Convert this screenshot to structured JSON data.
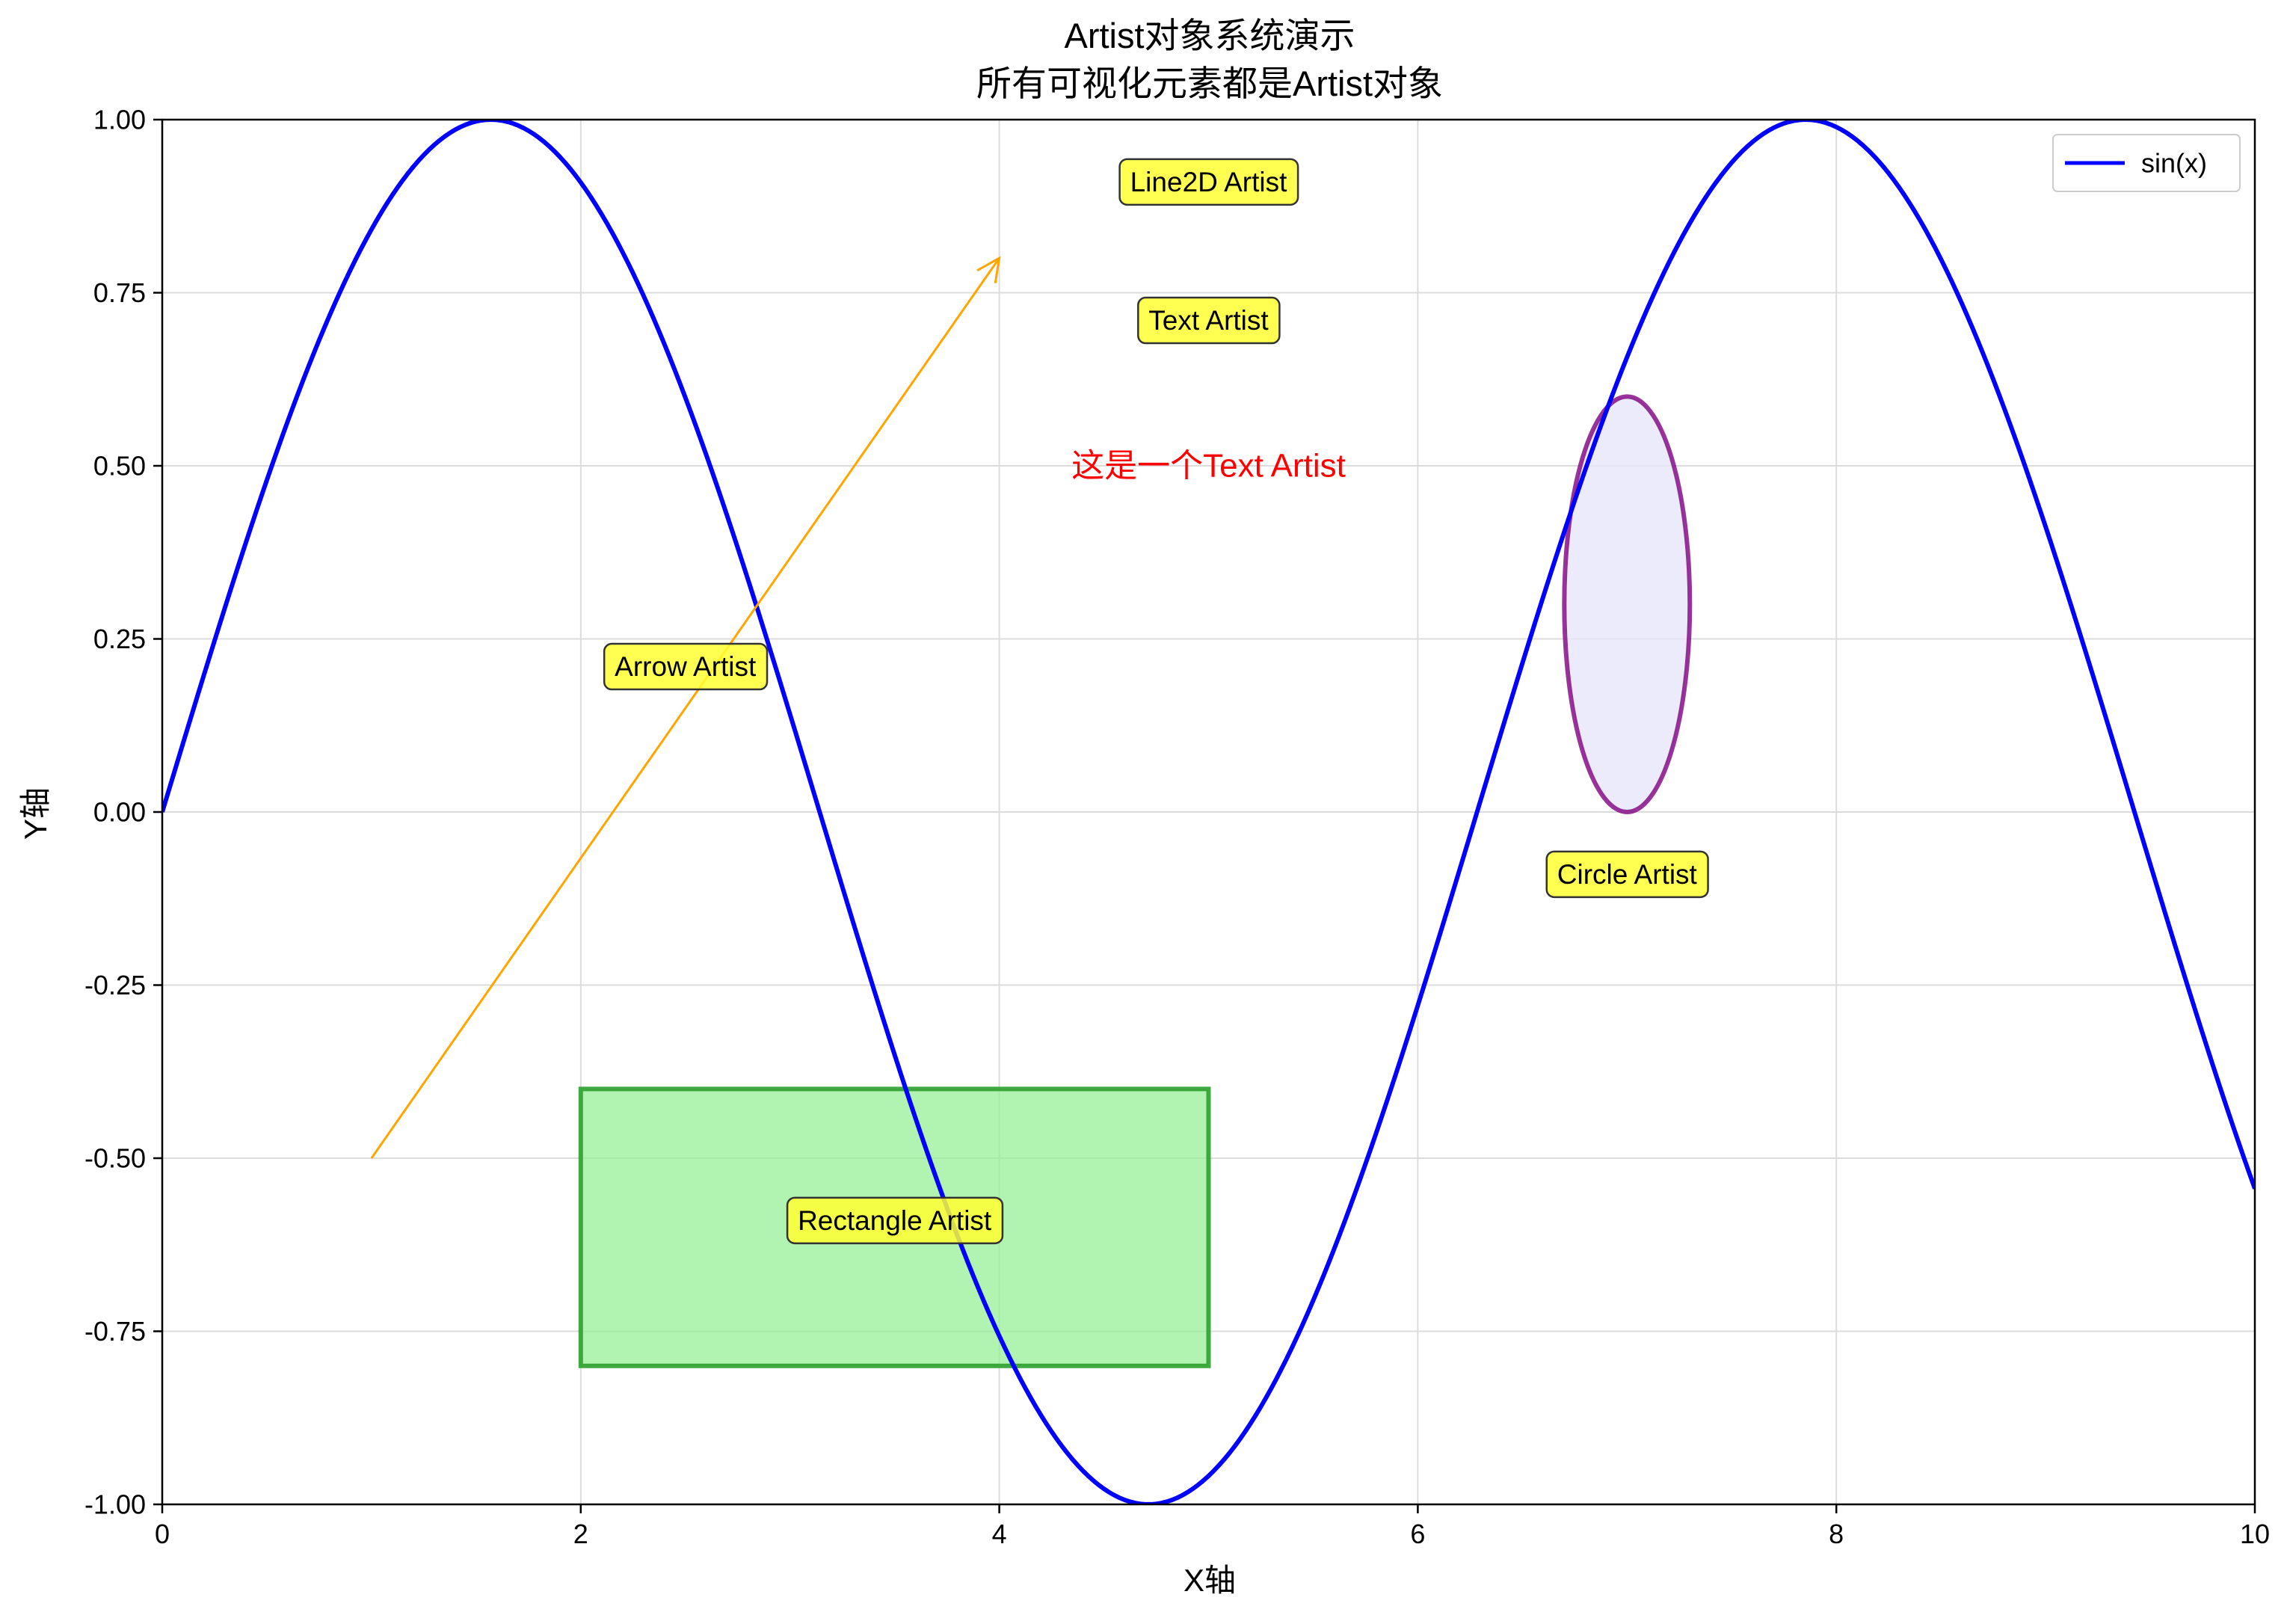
{
  "chart_data": {
    "type": "line",
    "title": "Artist对象系统演示",
    "subtitle": "所有可视化元素都是Artist对象",
    "xlabel": "X轴",
    "ylabel": "Y轴",
    "xlim": [
      0,
      10
    ],
    "ylim": [
      -1,
      1
    ],
    "x_ticks": [
      0,
      2,
      4,
      6,
      8,
      10
    ],
    "x_tick_labels": [
      "0",
      "2",
      "4",
      "6",
      "8",
      "10"
    ],
    "y_ticks": [
      -1.0,
      -0.75,
      -0.5,
      -0.25,
      0.0,
      0.25,
      0.5,
      0.75,
      1.0
    ],
    "y_tick_labels": [
      "-1.00",
      "-0.75",
      "-0.50",
      "-0.25",
      "0.00",
      "0.25",
      "0.50",
      "0.75",
      "1.00"
    ],
    "grid": true,
    "legend_position": "top-right",
    "series": [
      {
        "name": "sin(x)",
        "function": "sin(x)",
        "x_range": [
          0,
          10
        ],
        "color": "#0000ff"
      }
    ],
    "shapes": [
      {
        "kind": "arrow",
        "from": [
          1,
          -0.5
        ],
        "to": [
          4,
          0.8
        ],
        "color": "#ffa500"
      },
      {
        "kind": "rectangle",
        "x": 2,
        "y": -0.8,
        "width": 3,
        "height": 0.4,
        "fill": "#90ee90",
        "edge": "#2ca02c"
      },
      {
        "kind": "ellipse",
        "center": [
          7,
          0.3
        ],
        "x_radius": 0.3,
        "y_radius": 0.3,
        "fill": "#e6e6fa",
        "edge": "#800080"
      }
    ],
    "annotations": [
      {
        "text": "Line2D Artist",
        "x": 5,
        "y": 0.91,
        "boxed": true
      },
      {
        "text": "Text Artist",
        "x": 5,
        "y": 0.71,
        "boxed": true
      },
      {
        "text": "这是一个Text Artist",
        "x": 5,
        "y": 0.5,
        "boxed": false,
        "color": "#ff0000"
      },
      {
        "text": "Arrow Artist",
        "x": 2.5,
        "y": 0.21,
        "boxed": true
      },
      {
        "text": "Circle Artist",
        "x": 7,
        "y": -0.09,
        "boxed": true
      },
      {
        "text": "Rectangle Artist",
        "x": 3.5,
        "y": -0.59,
        "boxed": true
      }
    ],
    "annotation_box_fill": "#ffff33",
    "annotation_box_edge": "#333333"
  }
}
